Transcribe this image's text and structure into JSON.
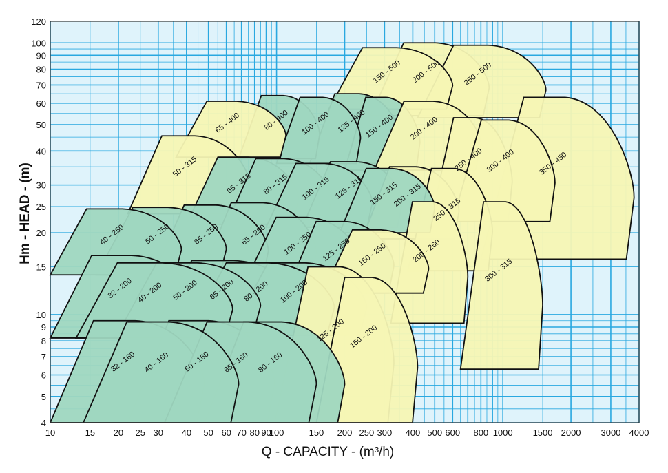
{
  "chart_data": {
    "type": "area",
    "title": "",
    "xlabel": "Q - CAPACITY - (m³/h)",
    "ylabel": "Hm - HEAD - (m)",
    "xscale": "log",
    "yscale": "log",
    "xlim": [
      10,
      4000
    ],
    "ylim": [
      4,
      120
    ],
    "grid": true,
    "x_ticks": [
      "10",
      "15",
      "20",
      "25",
      "30",
      "40",
      "50",
      "60",
      "70",
      "80",
      "90",
      "100",
      "150",
      "200",
      "250",
      "300",
      "400",
      "500",
      "600",
      "800",
      "1000",
      "1500",
      "2000",
      "3000",
      "4000"
    ],
    "y_ticks": [
      "4",
      "5",
      "6",
      "7",
      "8",
      "9",
      "10",
      "15",
      "20",
      "25",
      "30",
      "40",
      "50",
      "60",
      "70",
      "80",
      "90",
      "100",
      "120"
    ],
    "colors": {
      "grid": "#29a8e0",
      "zone_teal": "#9fd7c0",
      "zone_yellow": "#f5f5b4",
      "background": "#dff3fb"
    },
    "zones": [
      {
        "label": "32 - 160",
        "fill": "teal",
        "q_min": 10,
        "q_max": 48,
        "h_min": 4,
        "h_max": 9.5
      },
      {
        "label": "40 - 160",
        "fill": "teal",
        "q_min": 14,
        "q_max": 68,
        "h_min": 4,
        "h_max": 9.4
      },
      {
        "label": "50 - 160",
        "fill": "teal",
        "q_min": 22,
        "q_max": 98,
        "h_min": 4,
        "h_max": 9.5
      },
      {
        "label": "65 - 160",
        "fill": "teal",
        "q_min": 32,
        "q_max": 150,
        "h_min": 4,
        "h_max": 9.4
      },
      {
        "label": "80 - 160",
        "fill": "teal",
        "q_min": 48,
        "q_max": 200,
        "h_min": 4,
        "h_max": 9.4
      },
      {
        "label": "32 - 200",
        "fill": "teal",
        "q_min": 10,
        "q_max": 45,
        "h_min": 8.2,
        "h_max": 16.5
      },
      {
        "label": "40 - 200",
        "fill": "teal",
        "q_min": 13,
        "q_max": 64,
        "h_min": 8.2,
        "h_max": 15.5
      },
      {
        "label": "50 - 200",
        "fill": "teal",
        "q_min": 20,
        "q_max": 85,
        "h_min": 8.6,
        "h_max": 15.5
      },
      {
        "label": "65 - 200",
        "fill": "teal",
        "q_min": 28,
        "q_max": 128,
        "h_min": 8.5,
        "h_max": 15.8
      },
      {
        "label": "80 - 200",
        "fill": "teal",
        "q_min": 40,
        "q_max": 180,
        "h_min": 8.4,
        "h_max": 15.5
      },
      {
        "label": "100 - 200",
        "fill": "teal",
        "q_min": 62,
        "q_max": 250,
        "h_min": 8.4,
        "h_max": 15.5
      },
      {
        "label": "125 - 200",
        "fill": "yellow",
        "q_min": 98,
        "q_max": 330,
        "h_min": 4,
        "h_max": 15
      },
      {
        "label": "150 - 200",
        "fill": "yellow",
        "q_min": 150,
        "q_max": 420,
        "h_min": 4,
        "h_max": 13.7
      },
      {
        "label": "40 - 250",
        "fill": "teal",
        "q_min": 10,
        "q_max": 38,
        "h_min": 14,
        "h_max": 24.5
      },
      {
        "label": "50 - 250",
        "fill": "teal",
        "q_min": 16,
        "q_max": 60,
        "h_min": 14,
        "h_max": 24.8
      },
      {
        "label": "65 - 250",
        "fill": "teal",
        "q_min": 28,
        "q_max": 92,
        "h_min": 13.5,
        "h_max": 25.3
      },
      {
        "label": "65 - 250",
        "fill": "teal",
        "q_min": 45,
        "q_max": 150,
        "h_min": 13,
        "h_max": 25.8
      },
      {
        "label": "100 - 250",
        "fill": "teal",
        "q_min": 72,
        "q_max": 230,
        "h_min": 13,
        "h_max": 22.8
      },
      {
        "label": "125 - 250",
        "fill": "teal",
        "q_min": 110,
        "q_max": 330,
        "h_min": 12,
        "h_max": 22
      },
      {
        "label": "150 - 250",
        "fill": "yellow",
        "q_min": 160,
        "q_max": 470,
        "h_min": 12,
        "h_max": 20.5
      },
      {
        "label": "50 - 315",
        "fill": "yellow",
        "q_min": 22,
        "q_max": 76,
        "h_min": 23.5,
        "h_max": 45.5
      },
      {
        "label": "65 - 315",
        "fill": "teal",
        "q_min": 40,
        "q_max": 125,
        "h_min": 21.5,
        "h_max": 38
      },
      {
        "label": "80 - 315",
        "fill": "teal",
        "q_min": 60,
        "q_max": 175,
        "h_min": 21.5,
        "h_max": 37.5
      },
      {
        "label": "100 - 315",
        "fill": "teal",
        "q_min": 90,
        "q_max": 265,
        "h_min": 21,
        "h_max": 36
      },
      {
        "label": "125 - 315",
        "fill": "teal",
        "q_min": 130,
        "q_max": 360,
        "h_min": 21,
        "h_max": 36.5
      },
      {
        "label": "150 - 315",
        "fill": "teal",
        "q_min": 190,
        "q_max": 500,
        "h_min": 20,
        "h_max": 34.5
      },
      {
        "label": "200 - 315",
        "fill": "yellow",
        "q_min": 240,
        "q_max": 640,
        "h_min": 19,
        "h_max": 35
      },
      {
        "label": "200 - 260",
        "fill": "yellow",
        "q_min": 320,
        "q_max": 700,
        "h_min": 9.3,
        "h_max": 26
      },
      {
        "label": "250 - 315",
        "fill": "yellow",
        "q_min": 380,
        "q_max": 900,
        "h_min": 14.5,
        "h_max": 34.5
      },
      {
        "label": "300 - 315",
        "fill": "yellow",
        "q_min": 650,
        "q_max": 1500,
        "h_min": 6.3,
        "h_max": 26
      },
      {
        "label": "65 - 400",
        "fill": "yellow",
        "q_min": 36,
        "q_max": 110,
        "h_min": 38,
        "h_max": 61
      },
      {
        "label": "80 - 400",
        "fill": "teal",
        "q_min": 68,
        "q_max": 155,
        "h_min": 37.5,
        "h_max": 64
      },
      {
        "label": "100 - 400",
        "fill": "teal",
        "q_min": 100,
        "q_max": 235,
        "h_min": 36,
        "h_max": 63
      },
      {
        "label": "125 - 400",
        "fill": "teal",
        "q_min": 140,
        "q_max": 350,
        "h_min": 36,
        "h_max": 65
      },
      {
        "label": "150 - 400",
        "fill": "teal",
        "q_min": 200,
        "q_max": 430,
        "h_min": 34,
        "h_max": 63
      },
      {
        "label": "200 - 400",
        "fill": "yellow",
        "q_min": 270,
        "q_max": 800,
        "h_min": 34,
        "h_max": 61
      },
      {
        "label": "250 - 400",
        "fill": "yellow",
        "q_min": 480,
        "q_max": 1100,
        "h_min": 22,
        "h_max": 53
      },
      {
        "label": "300 - 400",
        "fill": "yellow",
        "q_min": 600,
        "q_max": 1700,
        "h_min": 22,
        "h_max": 52
      },
      {
        "label": "150 - 500",
        "fill": "yellow",
        "q_min": 170,
        "q_max": 600,
        "h_min": 57,
        "h_max": 96
      },
      {
        "label": "200 - 500",
        "fill": "yellow",
        "q_min": 260,
        "q_max": 870,
        "h_min": 54,
        "h_max": 100
      },
      {
        "label": "250 - 500",
        "fill": "yellow",
        "q_min": 420,
        "q_max": 1550,
        "h_min": 53,
        "h_max": 98
      },
      {
        "label": "350 - 450",
        "fill": "yellow",
        "q_min": 800,
        "q_max": 3800,
        "h_min": 16,
        "h_max": 63
      }
    ]
  }
}
